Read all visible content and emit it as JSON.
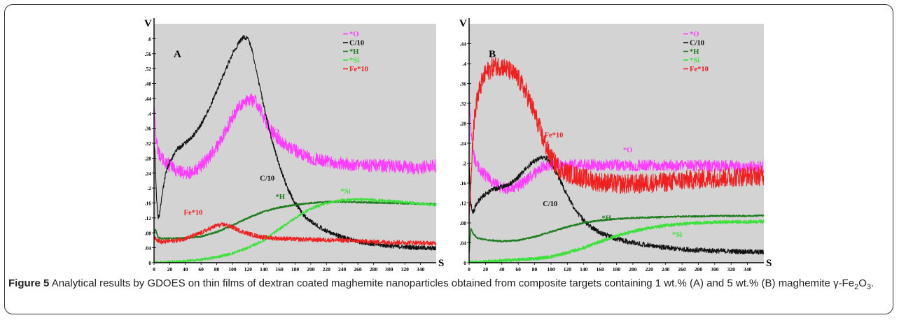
{
  "caption": {
    "figure_label": "Figure 5",
    "text_main": "Analytical results by GDOES on thin films of dextran coated maghemite nanoparticles obtained from composite targets containing 1 wt.% (A) and 5 wt.% (B) maghemite ",
    "symbol_gamma": "γ",
    "symbol_fe": "-Fe",
    "sub_2": "2",
    "symbol_o": "O",
    "sub_3": "3",
    "period": "."
  },
  "colors": {
    "O": "#ff3cff",
    "C": "#111111",
    "H": "#1e7d1e",
    "Si": "#3de03d",
    "Fe": "#ee2020",
    "background": "#d3d3d3"
  },
  "chart_data": [
    {
      "type": "line",
      "panel_label": "A",
      "ylabel": "V",
      "xlabel": "S",
      "xlim": [
        0,
        360
      ],
      "ylim": [
        0,
        0.64
      ],
      "x_ticks": [
        0,
        20,
        40,
        60,
        80,
        100,
        120,
        140,
        160,
        180,
        200,
        220,
        240,
        260,
        280,
        300,
        320,
        340
      ],
      "y_ticks": [
        0,
        0.04,
        0.08,
        0.12,
        0.16,
        0.2,
        0.24,
        0.28,
        0.32,
        0.36,
        0.4,
        0.44,
        0.48,
        0.52,
        0.56,
        0.6
      ],
      "legend": [
        "*O",
        "C/10",
        "*H",
        "*Si",
        "Fe*10"
      ],
      "annotations": [
        {
          "text": "*O",
          "x": 148,
          "y": 0.345,
          "series": "O"
        },
        {
          "text": "C/10",
          "x": 135,
          "y": 0.22,
          "series": "C"
        },
        {
          "text": "*H",
          "x": 155,
          "y": 0.17,
          "series": "H"
        },
        {
          "text": "*Si",
          "x": 238,
          "y": 0.185,
          "series": "Si"
        },
        {
          "text": "Fe*10",
          "x": 38,
          "y": 0.128,
          "series": "Fe"
        }
      ],
      "series": [
        {
          "name": "*O",
          "key": "O",
          "noise": 0.018,
          "x": [
            0,
            3,
            6,
            10,
            20,
            30,
            40,
            50,
            60,
            70,
            80,
            90,
            100,
            110,
            120,
            130,
            140,
            150,
            160,
            170,
            180,
            190,
            200,
            220,
            240,
            260,
            280,
            300,
            320,
            340,
            360
          ],
          "y": [
            0.41,
            0.32,
            0.29,
            0.28,
            0.26,
            0.245,
            0.24,
            0.245,
            0.26,
            0.28,
            0.31,
            0.35,
            0.39,
            0.42,
            0.44,
            0.43,
            0.39,
            0.35,
            0.33,
            0.31,
            0.3,
            0.29,
            0.28,
            0.27,
            0.265,
            0.26,
            0.26,
            0.26,
            0.255,
            0.255,
            0.26
          ]
        },
        {
          "name": "C/10",
          "key": "C",
          "noise": 0.006,
          "x": [
            0,
            1,
            3,
            5,
            7,
            10,
            15,
            20,
            30,
            40,
            50,
            60,
            70,
            80,
            90,
            100,
            110,
            115,
            120,
            125,
            130,
            140,
            150,
            160,
            170,
            180,
            190,
            200,
            220,
            240,
            260,
            280,
            300,
            320,
            340,
            360
          ],
          "y": [
            0.32,
            0.3,
            0.18,
            0.12,
            0.13,
            0.18,
            0.24,
            0.27,
            0.305,
            0.32,
            0.34,
            0.37,
            0.41,
            0.46,
            0.51,
            0.56,
            0.595,
            0.605,
            0.6,
            0.57,
            0.52,
            0.42,
            0.33,
            0.26,
            0.2,
            0.16,
            0.13,
            0.11,
            0.085,
            0.068,
            0.057,
            0.05,
            0.045,
            0.042,
            0.04,
            0.038
          ]
        },
        {
          "name": "*H",
          "key": "H",
          "noise": 0.002,
          "x": [
            0,
            2,
            5,
            10,
            20,
            40,
            60,
            80,
            100,
            120,
            140,
            160,
            180,
            200,
            220,
            240,
            260,
            280,
            300,
            320,
            340,
            360
          ],
          "y": [
            0.08,
            0.09,
            0.068,
            0.065,
            0.065,
            0.066,
            0.07,
            0.082,
            0.1,
            0.12,
            0.137,
            0.148,
            0.155,
            0.16,
            0.163,
            0.163,
            0.162,
            0.161,
            0.16,
            0.159,
            0.158,
            0.157
          ]
        },
        {
          "name": "*Si",
          "key": "Si",
          "noise": 0.004,
          "x": [
            0,
            10,
            20,
            40,
            60,
            80,
            100,
            120,
            140,
            160,
            180,
            200,
            220,
            240,
            260,
            280,
            300,
            320,
            340,
            360
          ],
          "y": [
            0,
            0.001,
            0.002,
            0.004,
            0.008,
            0.015,
            0.025,
            0.04,
            0.06,
            0.09,
            0.12,
            0.145,
            0.16,
            0.167,
            0.17,
            0.168,
            0.165,
            0.162,
            0.158,
            0.155
          ]
        },
        {
          "name": "Fe*10",
          "key": "Fe",
          "noise": 0.006,
          "x": [
            0,
            5,
            10,
            20,
            30,
            40,
            50,
            60,
            70,
            80,
            90,
            100,
            110,
            120,
            130,
            140,
            150,
            160,
            180,
            200,
            220,
            240,
            260,
            280,
            300,
            320,
            340,
            360
          ],
          "y": [
            0.07,
            0.06,
            0.055,
            0.058,
            0.06,
            0.065,
            0.072,
            0.08,
            0.09,
            0.1,
            0.102,
            0.095,
            0.085,
            0.078,
            0.072,
            0.068,
            0.066,
            0.065,
            0.063,
            0.062,
            0.061,
            0.06,
            0.058,
            0.056,
            0.055,
            0.054,
            0.053,
            0.052
          ]
        }
      ]
    },
    {
      "type": "line",
      "panel_label": "B",
      "ylabel": "V",
      "xlabel": "S",
      "xlim": [
        0,
        360
      ],
      "ylim": [
        0,
        0.48
      ],
      "x_ticks": [
        0,
        20,
        40,
        60,
        80,
        100,
        120,
        140,
        160,
        180,
        200,
        220,
        240,
        260,
        280,
        300,
        320,
        340
      ],
      "y_ticks": [
        0,
        0.04,
        0.08,
        0.12,
        0.16,
        0.2,
        0.24,
        0.28,
        0.32,
        0.36,
        0.4,
        0.44
      ],
      "legend": [
        "*O",
        "C/10",
        "*H",
        "*Si",
        "Fe*10"
      ],
      "annotations": [
        {
          "text": "Fe*10",
          "x": 92,
          "y": 0.252,
          "series": "Fe"
        },
        {
          "text": "*O",
          "x": 188,
          "y": 0.222,
          "series": "O"
        },
        {
          "text": "C/10",
          "x": 90,
          "y": 0.114,
          "series": "C"
        },
        {
          "text": "*H",
          "x": 162,
          "y": 0.085,
          "series": "H"
        },
        {
          "text": "*Si",
          "x": 248,
          "y": 0.052,
          "series": "Si"
        }
      ],
      "series": [
        {
          "name": "*O",
          "key": "O",
          "noise": 0.012,
          "x": [
            0,
            3,
            6,
            10,
            15,
            20,
            30,
            40,
            50,
            60,
            70,
            80,
            90,
            100,
            110,
            120,
            140,
            160,
            180,
            200,
            220,
            240,
            260,
            280,
            300,
            320,
            340,
            360
          ],
          "y": [
            0.32,
            0.25,
            0.21,
            0.195,
            0.185,
            0.175,
            0.16,
            0.15,
            0.15,
            0.155,
            0.165,
            0.18,
            0.195,
            0.198,
            0.197,
            0.196,
            0.196,
            0.196,
            0.196,
            0.195,
            0.195,
            0.195,
            0.195,
            0.195,
            0.194,
            0.194,
            0.193,
            0.193
          ]
        },
        {
          "name": "C/10",
          "key": "C",
          "noise": 0.005,
          "x": [
            0,
            2,
            4,
            6,
            8,
            10,
            15,
            20,
            30,
            40,
            50,
            60,
            70,
            80,
            90,
            95,
            100,
            110,
            120,
            130,
            140,
            150,
            160,
            170,
            180,
            200,
            220,
            240,
            260,
            280,
            300,
            320,
            340,
            360
          ],
          "y": [
            0.2,
            0.12,
            0.1,
            0.105,
            0.115,
            0.122,
            0.13,
            0.138,
            0.148,
            0.152,
            0.158,
            0.172,
            0.19,
            0.205,
            0.212,
            0.21,
            0.2,
            0.17,
            0.135,
            0.105,
            0.085,
            0.07,
            0.06,
            0.054,
            0.048,
            0.04,
            0.035,
            0.03,
            0.027,
            0.025,
            0.024,
            0.023,
            0.022,
            0.021
          ]
        },
        {
          "name": "*H",
          "key": "H",
          "noise": 0.0015,
          "x": [
            0,
            2,
            5,
            10,
            20,
            40,
            60,
            80,
            100,
            120,
            140,
            160,
            180,
            200,
            220,
            240,
            260,
            280,
            300,
            320,
            340,
            360
          ],
          "y": [
            0.02,
            0.07,
            0.058,
            0.05,
            0.046,
            0.043,
            0.045,
            0.052,
            0.062,
            0.072,
            0.08,
            0.085,
            0.088,
            0.09,
            0.091,
            0.092,
            0.093,
            0.093,
            0.094,
            0.094,
            0.094,
            0.095
          ]
        },
        {
          "name": "*Si",
          "key": "Si",
          "noise": 0.003,
          "x": [
            0,
            20,
            40,
            60,
            80,
            100,
            120,
            140,
            160,
            180,
            200,
            220,
            240,
            260,
            280,
            300,
            320,
            340,
            360
          ],
          "y": [
            0.001,
            0.002,
            0.004,
            0.006,
            0.008,
            0.012,
            0.02,
            0.03,
            0.042,
            0.054,
            0.063,
            0.07,
            0.075,
            0.078,
            0.08,
            0.081,
            0.082,
            0.082,
            0.083
          ]
        },
        {
          "name": "Fe*10",
          "key": "Fe",
          "noise": 0.02,
          "x": [
            0,
            2,
            4,
            6,
            8,
            10,
            15,
            20,
            30,
            40,
            50,
            60,
            70,
            80,
            90,
            100,
            110,
            120,
            130,
            140,
            150,
            160,
            170,
            180,
            200,
            220,
            240,
            260,
            280,
            300,
            320,
            340,
            360
          ],
          "y": [
            0.08,
            0.16,
            0.24,
            0.28,
            0.31,
            0.33,
            0.36,
            0.38,
            0.395,
            0.395,
            0.385,
            0.37,
            0.34,
            0.3,
            0.25,
            0.21,
            0.19,
            0.18,
            0.175,
            0.17,
            0.165,
            0.162,
            0.16,
            0.158,
            0.158,
            0.16,
            0.162,
            0.165,
            0.168,
            0.17,
            0.172,
            0.174,
            0.175
          ]
        }
      ]
    }
  ]
}
